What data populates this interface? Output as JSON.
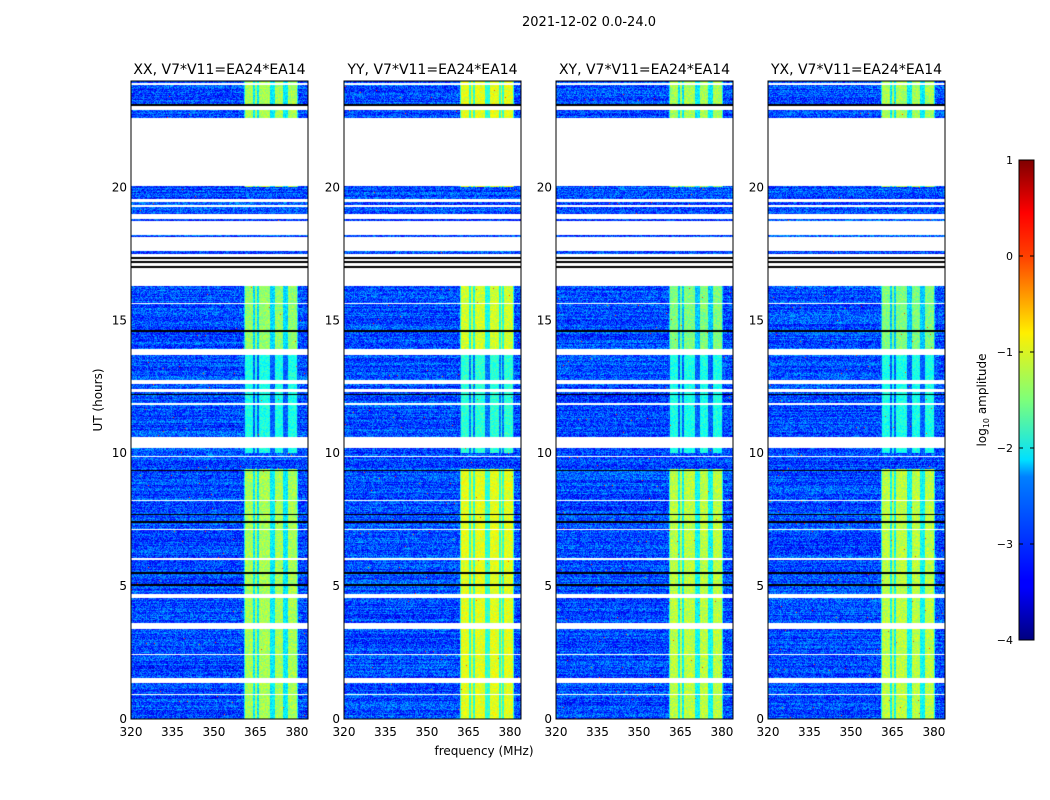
{
  "chart_data": {
    "type": "heatmap",
    "title": "2021-12-02 0.0-24.0",
    "xlabel": "frequency (MHz)",
    "ylabel": "UT (hours)",
    "xlim": [
      320,
      384
    ],
    "ylim": [
      0,
      24
    ],
    "xticks": [
      320,
      335,
      350,
      365,
      380
    ],
    "yticks": [
      0,
      5,
      10,
      15,
      20
    ],
    "colorbar": {
      "label": "log10 amplitude",
      "label_main": "log",
      "label_sub": "10",
      "label_tail": " amplitude",
      "colormap": "jet",
      "range": [
        -4,
        1
      ],
      "ticks": [
        1,
        0,
        -1,
        -2,
        -3,
        -4
      ],
      "tick_labels": [
        "1",
        "0",
        "−1",
        "−2",
        "−3",
        "−4"
      ]
    },
    "background_level": -3.0,
    "rfi_band_MHz": [
      361,
      380.5
    ],
    "rfi_band_dark_channels_MHz": [
      361,
      364.5,
      366,
      370.5,
      371.5,
      375.5,
      376.5,
      380.5
    ],
    "flagged_intervals_hours": [
      [
        23.85,
        23.92
      ],
      [
        22.9,
        23.05
      ],
      [
        20.05,
        22.6
      ],
      [
        19.45,
        19.55
      ],
      [
        19.25,
        19.35
      ],
      [
        18.8,
        19.0
      ],
      [
        18.2,
        18.75
      ],
      [
        17.6,
        18.15
      ],
      [
        16.3,
        17.5
      ],
      [
        15.6,
        15.65
      ],
      [
        13.7,
        13.9
      ],
      [
        12.6,
        12.75
      ],
      [
        12.3,
        12.4
      ],
      [
        11.8,
        11.9
      ],
      [
        10.2,
        10.6
      ],
      [
        9.85,
        9.9
      ],
      [
        8.2,
        8.25
      ],
      [
        7.1,
        7.15
      ],
      [
        6.0,
        6.05
      ],
      [
        4.55,
        4.7
      ],
      [
        3.4,
        3.6
      ],
      [
        2.4,
        2.45
      ],
      [
        1.35,
        1.55
      ],
      [
        0.9,
        0.95
      ]
    ],
    "dark_lines_hours": [
      23.1,
      17.35,
      17.2,
      17.0,
      14.6,
      12.2,
      9.35,
      7.7,
      7.4,
      5.5,
      5.05
    ],
    "panels": [
      {
        "title": "XX, V7*V11=EA24*EA14",
        "band_offset": 0.0,
        "band_levels": [
          [
            20.0,
            24.0,
            -1.3
          ],
          [
            13.8,
            16.3,
            -1.4
          ],
          [
            10.0,
            13.8,
            -2.0
          ],
          [
            0.0,
            9.4,
            -1.3
          ]
        ]
      },
      {
        "title": "YY, V7*V11=EA24*EA14",
        "band_offset": 1.0,
        "band_levels": [
          [
            20.0,
            24.0,
            -1.0
          ],
          [
            13.8,
            16.3,
            -1.1
          ],
          [
            10.0,
            13.8,
            -1.9
          ],
          [
            0.0,
            9.4,
            -1.0
          ]
        ]
      },
      {
        "title": "XY, V7*V11=EA24*EA14",
        "band_offset": 0.0,
        "band_levels": [
          [
            20.0,
            24.0,
            -1.3
          ],
          [
            13.8,
            16.3,
            -1.5
          ],
          [
            10.0,
            13.8,
            -2.0
          ],
          [
            0.0,
            9.4,
            -1.2
          ]
        ]
      },
      {
        "title": "YX, V7*V11=EA24*EA14",
        "band_offset": 0.0,
        "band_levels": [
          [
            20.0,
            24.0,
            -1.3
          ],
          [
            13.8,
            16.3,
            -1.5
          ],
          [
            10.0,
            13.8,
            -2.0
          ],
          [
            0.0,
            9.4,
            -1.2
          ]
        ]
      }
    ]
  }
}
